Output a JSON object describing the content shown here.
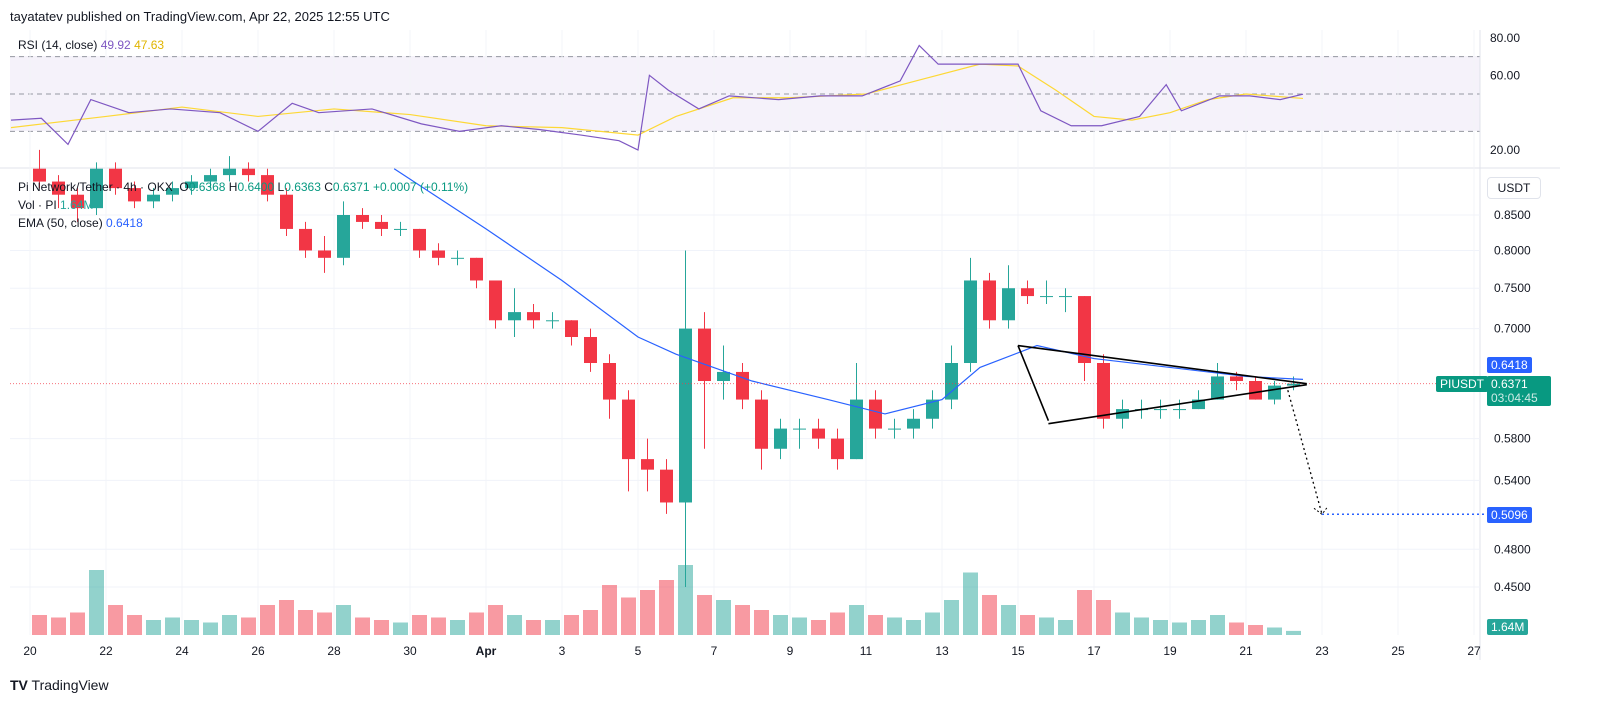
{
  "header": {
    "published": "tayatatev published on TradingView.com, Apr 22, 2025 12:55 UTC"
  },
  "rsi": {
    "title": "RSI (14, close)",
    "value": "49.92",
    "ma_value": "47.63",
    "ticks": [
      "80.00",
      "60.00",
      "20.00"
    ]
  },
  "legend": {
    "symbol": "Pi Network/Tether · 4h · OKX",
    "o_label": "O",
    "o": "0.6368",
    "h_label": "H",
    "h": "0.6400",
    "l_label": "L",
    "l": "0.6363",
    "c_label": "C",
    "c": "0.6371",
    "change": "+0.0007 (+0.11%)",
    "vol_label": "Vol · PI",
    "vol": "1.64M",
    "ema_label": "EMA (50, close)",
    "ema": "0.6418"
  },
  "axis": {
    "currency": "USDT",
    "price_ticks": [
      "0.8500",
      "0.8000",
      "0.7500",
      "0.7000",
      "0.5800",
      "0.5400",
      "0.4800",
      "0.4500"
    ],
    "ema_tag": "0.6418",
    "symbol_tag": "PIUSDT",
    "last_tag": "0.6371",
    "countdown": "03:04:45",
    "target_tag": "0.5096",
    "vol_tag": "1.64M",
    "date_ticks": [
      "20",
      "22",
      "24",
      "26",
      "28",
      "30",
      "Apr",
      "3",
      "5",
      "7",
      "9",
      "11",
      "13",
      "15",
      "17",
      "19",
      "21",
      "23",
      "25",
      "27"
    ]
  },
  "footer": {
    "brand": "TradingView"
  },
  "colors": {
    "up": "#26a69a",
    "down": "#f23645",
    "ema": "#2962ff",
    "rsi": "#7e57c2",
    "rsi_ma": "#fdd835",
    "target": "#2962ff"
  },
  "chart_data": {
    "type": "candlestick",
    "price_scale": "log",
    "x_axis": "date, Mar 20 – Apr 27 2025",
    "candle_interval": "12h (approximated from 4h chart)",
    "first_candle": "2025-03-20",
    "ohlc": [
      [
        0.92,
        0.95,
        0.89,
        0.9
      ],
      [
        0.9,
        0.91,
        0.86,
        0.88
      ],
      [
        0.88,
        0.89,
        0.84,
        0.86
      ],
      [
        0.86,
        0.93,
        0.85,
        0.92
      ],
      [
        0.92,
        0.93,
        0.88,
        0.89
      ],
      [
        0.89,
        0.9,
        0.86,
        0.87
      ],
      [
        0.87,
        0.89,
        0.86,
        0.88
      ],
      [
        0.88,
        0.9,
        0.87,
        0.89
      ],
      [
        0.89,
        0.91,
        0.88,
        0.9
      ],
      [
        0.9,
        0.92,
        0.89,
        0.91
      ],
      [
        0.91,
        0.94,
        0.9,
        0.92
      ],
      [
        0.92,
        0.93,
        0.9,
        0.91
      ],
      [
        0.91,
        0.92,
        0.87,
        0.88
      ],
      [
        0.88,
        0.89,
        0.82,
        0.83
      ],
      [
        0.83,
        0.84,
        0.79,
        0.8
      ],
      [
        0.8,
        0.82,
        0.77,
        0.79
      ],
      [
        0.79,
        0.87,
        0.78,
        0.85
      ],
      [
        0.85,
        0.86,
        0.83,
        0.84
      ],
      [
        0.84,
        0.85,
        0.82,
        0.83
      ],
      [
        0.83,
        0.84,
        0.82,
        0.83
      ],
      [
        0.83,
        0.83,
        0.79,
        0.8
      ],
      [
        0.8,
        0.81,
        0.78,
        0.79
      ],
      [
        0.79,
        0.8,
        0.78,
        0.79
      ],
      [
        0.79,
        0.79,
        0.75,
        0.76
      ],
      [
        0.76,
        0.76,
        0.7,
        0.71
      ],
      [
        0.71,
        0.75,
        0.69,
        0.72
      ],
      [
        0.72,
        0.73,
        0.7,
        0.71
      ],
      [
        0.71,
        0.72,
        0.7,
        0.71
      ],
      [
        0.71,
        0.71,
        0.68,
        0.69
      ],
      [
        0.69,
        0.7,
        0.65,
        0.66
      ],
      [
        0.66,
        0.67,
        0.6,
        0.62
      ],
      [
        0.62,
        0.63,
        0.53,
        0.56
      ],
      [
        0.56,
        0.58,
        0.53,
        0.55
      ],
      [
        0.55,
        0.56,
        0.51,
        0.52
      ],
      [
        0.52,
        0.8,
        0.45,
        0.7
      ],
      [
        0.7,
        0.72,
        0.57,
        0.64
      ],
      [
        0.64,
        0.68,
        0.62,
        0.65
      ],
      [
        0.65,
        0.66,
        0.61,
        0.62
      ],
      [
        0.62,
        0.63,
        0.55,
        0.57
      ],
      [
        0.57,
        0.6,
        0.56,
        0.59
      ],
      [
        0.59,
        0.6,
        0.57,
        0.59
      ],
      [
        0.59,
        0.6,
        0.57,
        0.58
      ],
      [
        0.58,
        0.59,
        0.55,
        0.56
      ],
      [
        0.56,
        0.66,
        0.56,
        0.62
      ],
      [
        0.62,
        0.63,
        0.58,
        0.59
      ],
      [
        0.59,
        0.6,
        0.58,
        0.59
      ],
      [
        0.59,
        0.61,
        0.58,
        0.6
      ],
      [
        0.6,
        0.63,
        0.59,
        0.62
      ],
      [
        0.62,
        0.68,
        0.61,
        0.66
      ],
      [
        0.66,
        0.79,
        0.65,
        0.76
      ],
      [
        0.76,
        0.77,
        0.7,
        0.71
      ],
      [
        0.71,
        0.78,
        0.7,
        0.75
      ],
      [
        0.75,
        0.76,
        0.73,
        0.74
      ],
      [
        0.74,
        0.76,
        0.73,
        0.74
      ],
      [
        0.74,
        0.75,
        0.72,
        0.74
      ],
      [
        0.74,
        0.74,
        0.64,
        0.66
      ],
      [
        0.66,
        0.67,
        0.59,
        0.6
      ],
      [
        0.6,
        0.62,
        0.59,
        0.61
      ],
      [
        0.61,
        0.62,
        0.6,
        0.61
      ],
      [
        0.61,
        0.62,
        0.6,
        0.61
      ],
      [
        0.61,
        0.62,
        0.6,
        0.61
      ],
      [
        0.61,
        0.63,
        0.61,
        0.62
      ],
      [
        0.62,
        0.66,
        0.62,
        0.645
      ],
      [
        0.645,
        0.65,
        0.63,
        0.64
      ],
      [
        0.64,
        0.645,
        0.62,
        0.62
      ],
      [
        0.62,
        0.64,
        0.615,
        0.635
      ],
      [
        0.635,
        0.645,
        0.63,
        0.6371
      ]
    ],
    "volume_m": [
      8,
      7,
      9,
      26,
      12,
      8,
      6,
      7,
      6,
      5,
      8,
      7,
      12,
      14,
      10,
      9,
      12,
      7,
      6,
      5,
      8,
      7,
      6,
      9,
      12,
      8,
      6,
      6,
      8,
      10,
      20,
      15,
      18,
      22,
      28,
      16,
      14,
      12,
      10,
      8,
      7,
      6,
      9,
      12,
      8,
      7,
      6,
      9,
      14,
      25,
      16,
      12,
      8,
      7,
      6,
      18,
      14,
      9,
      7,
      6,
      5,
      6,
      8,
      5,
      4,
      3,
      1.64
    ],
    "ema50": [
      [
        "2025-03-29T14:00",
        0.92
      ],
      [
        "2025-04-01",
        0.83
      ],
      [
        "2025-04-03",
        0.76
      ],
      [
        "2025-04-05",
        0.69
      ],
      [
        "2025-04-06",
        0.67
      ],
      [
        "2025-04-08",
        0.64
      ],
      [
        "2025-04-10",
        0.62
      ],
      [
        "2025-04-11T12:00",
        0.605
      ],
      [
        "2025-04-13",
        0.62
      ],
      [
        "2025-04-14",
        0.655
      ],
      [
        "2025-04-15T12:00",
        0.68
      ],
      [
        "2025-04-17",
        0.665
      ],
      [
        "2025-04-19",
        0.655
      ],
      [
        "2025-04-21",
        0.645
      ],
      [
        "2025-04-22T12:00",
        0.6418
      ]
    ],
    "rsi": [
      [
        -0.5,
        36
      ],
      [
        0.3,
        37
      ],
      [
        1,
        23
      ],
      [
        1.6,
        47
      ],
      [
        2.6,
        40
      ],
      [
        3.7,
        42
      ],
      [
        5,
        40
      ],
      [
        6,
        30
      ],
      [
        6.9,
        45
      ],
      [
        7.6,
        40
      ],
      [
        9,
        42
      ],
      [
        10.3,
        34
      ],
      [
        11.3,
        30
      ],
      [
        12.4,
        33
      ],
      [
        13.4,
        31
      ],
      [
        14.5,
        28
      ],
      [
        15.5,
        25
      ],
      [
        16,
        20
      ],
      [
        16.3,
        60
      ],
      [
        16.8,
        52
      ],
      [
        17.6,
        42
      ],
      [
        18.4,
        49
      ],
      [
        19.7,
        47
      ],
      [
        20.8,
        49
      ],
      [
        21.9,
        49
      ],
      [
        22.9,
        57
      ],
      [
        23.4,
        76
      ],
      [
        23.9,
        66
      ],
      [
        25,
        66
      ],
      [
        26,
        66
      ],
      [
        26.6,
        41
      ],
      [
        27.4,
        33
      ],
      [
        28.2,
        33
      ],
      [
        29.2,
        38
      ],
      [
        29.9,
        55
      ],
      [
        30.3,
        41
      ],
      [
        31.3,
        49
      ],
      [
        32.1,
        49
      ],
      [
        32.9,
        47
      ],
      [
        33.5,
        49.92
      ]
    ],
    "rsi_ma": [
      [
        -0.5,
        32
      ],
      [
        2,
        38
      ],
      [
        4,
        43
      ],
      [
        6,
        38
      ],
      [
        8,
        42
      ],
      [
        10,
        39
      ],
      [
        12,
        33
      ],
      [
        14,
        32
      ],
      [
        16,
        28
      ],
      [
        17,
        38
      ],
      [
        18.5,
        48
      ],
      [
        20,
        48
      ],
      [
        22,
        50
      ],
      [
        23.5,
        58
      ],
      [
        25,
        66
      ],
      [
        26,
        65
      ],
      [
        27,
        52
      ],
      [
        28,
        38
      ],
      [
        29,
        36
      ],
      [
        30,
        40
      ],
      [
        31,
        47
      ],
      [
        32,
        50
      ],
      [
        33.5,
        47.63
      ]
    ],
    "rsi_bands": [
      70,
      50,
      30
    ],
    "drawings": {
      "triangle_upper": [
        [
          26,
          0.68
        ],
        [
          33.6,
          0.6371
        ]
      ],
      "triangle_lower": [
        [
          26.8,
          0.595
        ],
        [
          33.6,
          0.636
        ]
      ],
      "drop_arrow": [
        [
          26,
          0.68
        ],
        [
          26.8,
          0.598
        ]
      ],
      "projection_arrow": [
        [
          33.1,
          0.63
        ],
        [
          34.0,
          0.5096
        ]
      ],
      "target_line": {
        "price": 0.5096,
        "from": 34.0,
        "to": 38.5
      }
    }
  }
}
